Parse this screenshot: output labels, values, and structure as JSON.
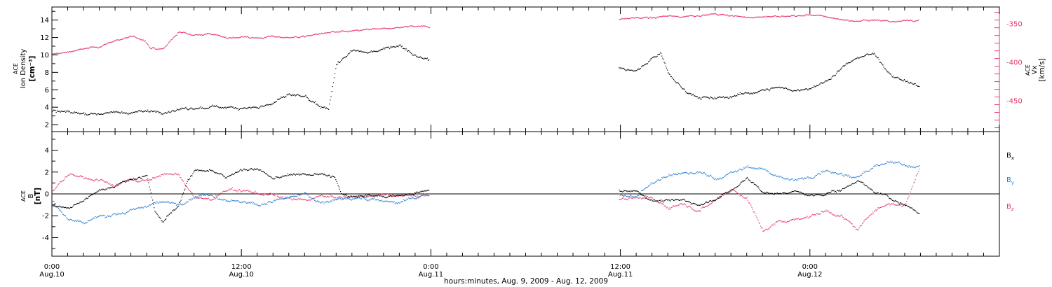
{
  "chart_data": [
    {
      "type": "scatter",
      "panel": "top",
      "ylabel_lines": [
        "ACE",
        "Ion Density",
        "[cm⁻³]"
      ],
      "ylim": [
        1.2,
        15.5
      ],
      "yticks": [
        2,
        4,
        6,
        8,
        10,
        12,
        14
      ],
      "right_axis": {
        "label": "V_x [km/s]",
        "label_lines": [
          "ACE",
          "Vx",
          "[km/s]"
        ],
        "ylim": [
          -490,
          -328
        ],
        "yticks": [
          -350,
          -400,
          -450
        ],
        "color": "#e8396a"
      },
      "series": [
        {
          "name": "Ion Density",
          "color": "#000000",
          "anchors": [
            [
              0,
              3.6
            ],
            [
              1,
              3.5
            ],
            [
              2,
              3.3
            ],
            [
              3,
              3.3
            ],
            [
              4,
              3.5
            ],
            [
              5,
              3.4
            ],
            [
              6,
              3.6
            ],
            [
              7,
              3.5
            ],
            [
              8,
              3.7
            ],
            [
              9,
              3.9
            ],
            [
              10,
              4.0
            ],
            [
              11,
              4.1
            ],
            [
              12,
              4.0
            ],
            [
              13,
              4.0
            ],
            [
              14,
              4.5
            ],
            [
              15,
              5.5
            ],
            [
              16,
              5.2
            ],
            [
              16.9,
              4.0
            ],
            [
              17.5,
              3.8
            ],
            [
              18,
              9.0
            ],
            [
              19,
              10.5
            ],
            [
              20,
              10.3
            ],
            [
              21,
              10.8
            ],
            [
              22,
              11.2
            ],
            [
              23,
              10.0
            ],
            [
              23.9,
              9.5
            ],
            [
              35.9,
              8.5
            ],
            [
              37,
              8.2
            ],
            [
              38,
              9.8
            ],
            [
              38.5,
              10.3
            ],
            [
              39,
              8.0
            ],
            [
              40,
              6.0
            ],
            [
              41,
              5.2
            ],
            [
              42,
              5.0
            ],
            [
              43,
              5.3
            ],
            [
              44,
              5.6
            ],
            [
              45,
              6.0
            ],
            [
              46,
              6.3
            ],
            [
              47,
              6.0
            ],
            [
              48,
              6.2
            ],
            [
              49,
              7.0
            ],
            [
              50,
              8.5
            ],
            [
              51,
              9.8
            ],
            [
              52,
              10.2
            ],
            [
              53,
              8.0
            ],
            [
              54,
              7.0
            ],
            [
              54.9,
              6.5
            ]
          ]
        },
        {
          "name": "Vx",
          "color": "#e8396a",
          "anchors": [
            [
              0,
              -389
            ],
            [
              1,
              -386
            ],
            [
              2,
              -382
            ],
            [
              3,
              -379
            ],
            [
              4,
              -371
            ],
            [
              5,
              -366
            ],
            [
              5.9,
              -371
            ],
            [
              6.2,
              -381
            ],
            [
              7,
              -383
            ],
            [
              8,
              -360
            ],
            [
              9,
              -364
            ],
            [
              10,
              -362
            ],
            [
              11,
              -368
            ],
            [
              12,
              -366
            ],
            [
              13,
              -368
            ],
            [
              14,
              -366
            ],
            [
              15,
              -367
            ],
            [
              16,
              -366
            ],
            [
              17,
              -362
            ],
            [
              18,
              -360
            ],
            [
              19,
              -359
            ],
            [
              20,
              -357
            ],
            [
              21,
              -356
            ],
            [
              22,
              -354
            ],
            [
              23,
              -352
            ],
            [
              23.9,
              -353
            ],
            [
              35.9,
              -343
            ],
            [
              37,
              -341
            ],
            [
              38,
              -342
            ],
            [
              39,
              -339
            ],
            [
              40,
              -340
            ],
            [
              41,
              -338
            ],
            [
              42,
              -337
            ],
            [
              43,
              -339
            ],
            [
              44,
              -341
            ],
            [
              45,
              -340
            ],
            [
              46,
              -340
            ],
            [
              47,
              -339
            ],
            [
              48,
              -338
            ],
            [
              49,
              -340
            ],
            [
              50,
              -344
            ],
            [
              51,
              -346
            ],
            [
              52,
              -344
            ],
            [
              53,
              -346
            ],
            [
              54,
              -345
            ],
            [
              54.9,
              -345
            ]
          ]
        }
      ]
    },
    {
      "type": "scatter",
      "panel": "bottom",
      "ylabel_lines": [
        "ACE",
        "B",
        "[nT]"
      ],
      "ylim": [
        -5.7,
        5.7
      ],
      "yticks": [
        -4,
        -2,
        0,
        2,
        4
      ],
      "zero_line": true,
      "series": [
        {
          "name": "Bx",
          "color": "#000000",
          "anchors": [
            [
              0,
              -1.0
            ],
            [
              1,
              -1.3
            ],
            [
              2,
              -0.6
            ],
            [
              3,
              0.4
            ],
            [
              4,
              0.8
            ],
            [
              5,
              1.4
            ],
            [
              6,
              1.7
            ],
            [
              6.5,
              -1.5
            ],
            [
              7,
              -2.5
            ],
            [
              8,
              -1.0
            ],
            [
              8.5,
              1.0
            ],
            [
              9,
              2.1
            ],
            [
              10,
              2.3
            ],
            [
              11,
              1.5
            ],
            [
              12,
              2.3
            ],
            [
              13,
              2.3
            ],
            [
              14,
              1.4
            ],
            [
              15,
              1.8
            ],
            [
              16,
              1.8
            ],
            [
              17,
              1.8
            ],
            [
              17.9,
              1.6
            ],
            [
              18.3,
              0.0
            ],
            [
              19,
              -0.3
            ],
            [
              20,
              -0.1
            ],
            [
              21,
              -0.2
            ],
            [
              22,
              -0.1
            ],
            [
              23,
              0.1
            ],
            [
              23.9,
              0.4
            ],
            [
              35.9,
              0.4
            ],
            [
              37,
              0.3
            ],
            [
              38,
              -0.6
            ],
            [
              39,
              -0.6
            ],
            [
              40,
              -0.5
            ],
            [
              41,
              -1.0
            ],
            [
              42,
              -0.4
            ],
            [
              43,
              0.3
            ],
            [
              44,
              1.5
            ],
            [
              45,
              0.2
            ],
            [
              46,
              0.0
            ],
            [
              47,
              0.3
            ],
            [
              48,
              -0.2
            ],
            [
              49,
              0.1
            ],
            [
              50,
              0.4
            ],
            [
              51,
              1.3
            ],
            [
              52,
              0.3
            ],
            [
              53,
              -0.3
            ],
            [
              54,
              -1.0
            ],
            [
              54.9,
              -1.7
            ]
          ]
        },
        {
          "name": "By",
          "color": "#2a7fd4",
          "anchors": [
            [
              0,
              -0.6
            ],
            [
              1,
              -2.2
            ],
            [
              2,
              -2.6
            ],
            [
              3,
              -2.0
            ],
            [
              4,
              -1.8
            ],
            [
              5,
              -1.6
            ],
            [
              6,
              -1.0
            ],
            [
              7,
              -0.7
            ],
            [
              8,
              -0.9
            ],
            [
              9,
              -0.2
            ],
            [
              10,
              0.0
            ],
            [
              11,
              -0.5
            ],
            [
              12,
              -0.7
            ],
            [
              13,
              -1.0
            ],
            [
              14,
              -0.6
            ],
            [
              15,
              -0.3
            ],
            [
              16,
              0.0
            ],
            [
              17,
              -0.8
            ],
            [
              18,
              -0.5
            ],
            [
              19,
              -0.3
            ],
            [
              20,
              -0.4
            ],
            [
              21,
              -0.6
            ],
            [
              22,
              -0.8
            ],
            [
              23,
              -0.3
            ],
            [
              23.9,
              -0.1
            ],
            [
              35.9,
              0.0
            ],
            [
              37,
              -0.2
            ],
            [
              38,
              1.0
            ],
            [
              39,
              1.7
            ],
            [
              40,
              1.9
            ],
            [
              41,
              2.0
            ],
            [
              42,
              1.4
            ],
            [
              43,
              1.9
            ],
            [
              44,
              2.5
            ],
            [
              45,
              2.3
            ],
            [
              46,
              1.6
            ],
            [
              47,
              1.3
            ],
            [
              48,
              1.5
            ],
            [
              49,
              2.3
            ],
            [
              50,
              1.8
            ],
            [
              51,
              1.6
            ],
            [
              52,
              2.4
            ],
            [
              53,
              2.9
            ],
            [
              54,
              2.7
            ],
            [
              54.9,
              2.5
            ]
          ]
        },
        {
          "name": "Bz",
          "color": "#e8396a",
          "anchors": [
            [
              0,
              0.2
            ],
            [
              1,
              1.8
            ],
            [
              2,
              1.5
            ],
            [
              3,
              1.3
            ],
            [
              4,
              0.8
            ],
            [
              5,
              1.4
            ],
            [
              6,
              1.2
            ],
            [
              7,
              1.8
            ],
            [
              8,
              1.8
            ],
            [
              9,
              -0.3
            ],
            [
              10,
              -0.5
            ],
            [
              11,
              0.3
            ],
            [
              12,
              0.4
            ],
            [
              13,
              0.1
            ],
            [
              14,
              -0.1
            ],
            [
              15,
              -0.5
            ],
            [
              16,
              -0.5
            ],
            [
              17,
              -0.2
            ],
            [
              18,
              -0.3
            ],
            [
              19,
              -0.3
            ],
            [
              20,
              -0.1
            ],
            [
              21,
              0.0
            ],
            [
              22,
              -0.1
            ],
            [
              23,
              -0.2
            ],
            [
              23.9,
              0.0
            ],
            [
              35.9,
              -0.4
            ],
            [
              37,
              -0.3
            ],
            [
              38,
              -0.4
            ],
            [
              39,
              -1.2
            ],
            [
              40,
              -0.8
            ],
            [
              41,
              -1.5
            ],
            [
              42,
              -0.5
            ],
            [
              43,
              0.5
            ],
            [
              44,
              -0.4
            ],
            [
              45,
              -3.3
            ],
            [
              46,
              -2.5
            ],
            [
              47,
              -2.3
            ],
            [
              48,
              -2.0
            ],
            [
              49,
              -1.5
            ],
            [
              50,
              -2.0
            ],
            [
              51,
              -3.3
            ],
            [
              52,
              -1.5
            ],
            [
              53,
              -0.8
            ],
            [
              54,
              -1.0
            ],
            [
              54.9,
              2.3
            ]
          ]
        }
      ],
      "legend_position": "right",
      "legend": [
        {
          "label": "Bx",
          "main": "B",
          "sub": "x",
          "color": "#000000"
        },
        {
          "label": "By",
          "main": "B",
          "sub": "y",
          "color": "#2a7fd4"
        },
        {
          "label": "Bz",
          "main": "B",
          "sub": "z",
          "color": "#e8396a"
        }
      ]
    }
  ],
  "x_axis": {
    "unit": "hours",
    "range": [
      0,
      60
    ],
    "major_ticks": [
      {
        "x": 0,
        "time": "0:00",
        "date": "Aug.10"
      },
      {
        "x": 12,
        "time": "12:00",
        "date": "Aug.10"
      },
      {
        "x": 24,
        "time": "0:00",
        "date": "Aug.11"
      },
      {
        "x": 36,
        "time": "12:00",
        "date": "Aug.11"
      },
      {
        "x": 48,
        "time": "0:00",
        "date": "Aug.12"
      }
    ],
    "minor_tick_step": 1,
    "xlabel": "hours:minutes, Aug. 9, 2009 - Aug. 12, 2009"
  }
}
